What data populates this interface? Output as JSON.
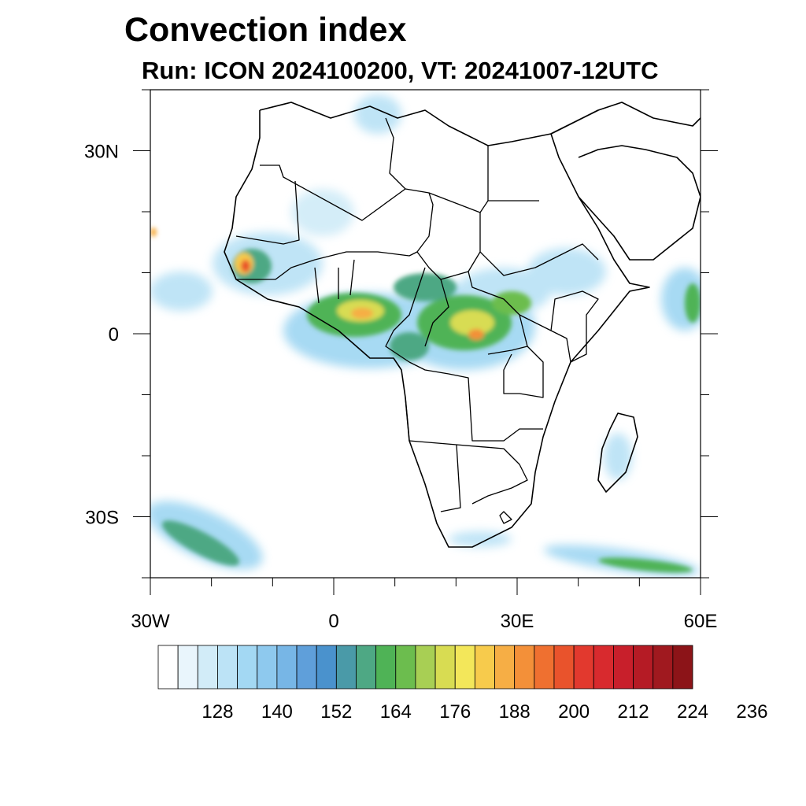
{
  "title": "Convection index",
  "subtitle": "Run: ICON 2024100200,  VT: 20241007-12UTC",
  "map": {
    "extent": {
      "lon_min": -30,
      "lon_max": 60,
      "lat_min": -40,
      "lat_max": 40
    },
    "lat_ticks": [
      {
        "value": 30,
        "label": "30N"
      },
      {
        "value": 0,
        "label": "0"
      },
      {
        "value": -30,
        "label": "30S"
      }
    ],
    "lon_ticks": [
      {
        "value": -30,
        "label": "30W"
      },
      {
        "value": 0,
        "label": "0"
      },
      {
        "value": 30,
        "label": "30E"
      },
      {
        "value": 60,
        "label": "60E"
      }
    ],
    "minor_lon_step": 10,
    "minor_lat_step": 10
  },
  "colorbar": {
    "colors": [
      "#ffffff",
      "#e9f5fc",
      "#d2ecf8",
      "#bce3f6",
      "#a3d8f3",
      "#8ec9ee",
      "#77b6e6",
      "#5f9fda",
      "#4a92cd",
      "#4a9aa8",
      "#4ea884",
      "#4fb356",
      "#6cbd4e",
      "#a8cf54",
      "#d8dc52",
      "#f3e75a",
      "#f7cb4c",
      "#f6ae45",
      "#f39039",
      "#ef7030",
      "#e9532c",
      "#e2392e",
      "#d82a2e",
      "#c81f2b",
      "#b51b25",
      "#a0191f",
      "#8c1418"
    ],
    "labels": [
      "128",
      "140",
      "152",
      "164",
      "176",
      "188",
      "200",
      "212",
      "224",
      "236"
    ]
  },
  "features": {
    "convection": "convection-field",
    "coastlines": "coastline",
    "borders": "country-borders"
  }
}
